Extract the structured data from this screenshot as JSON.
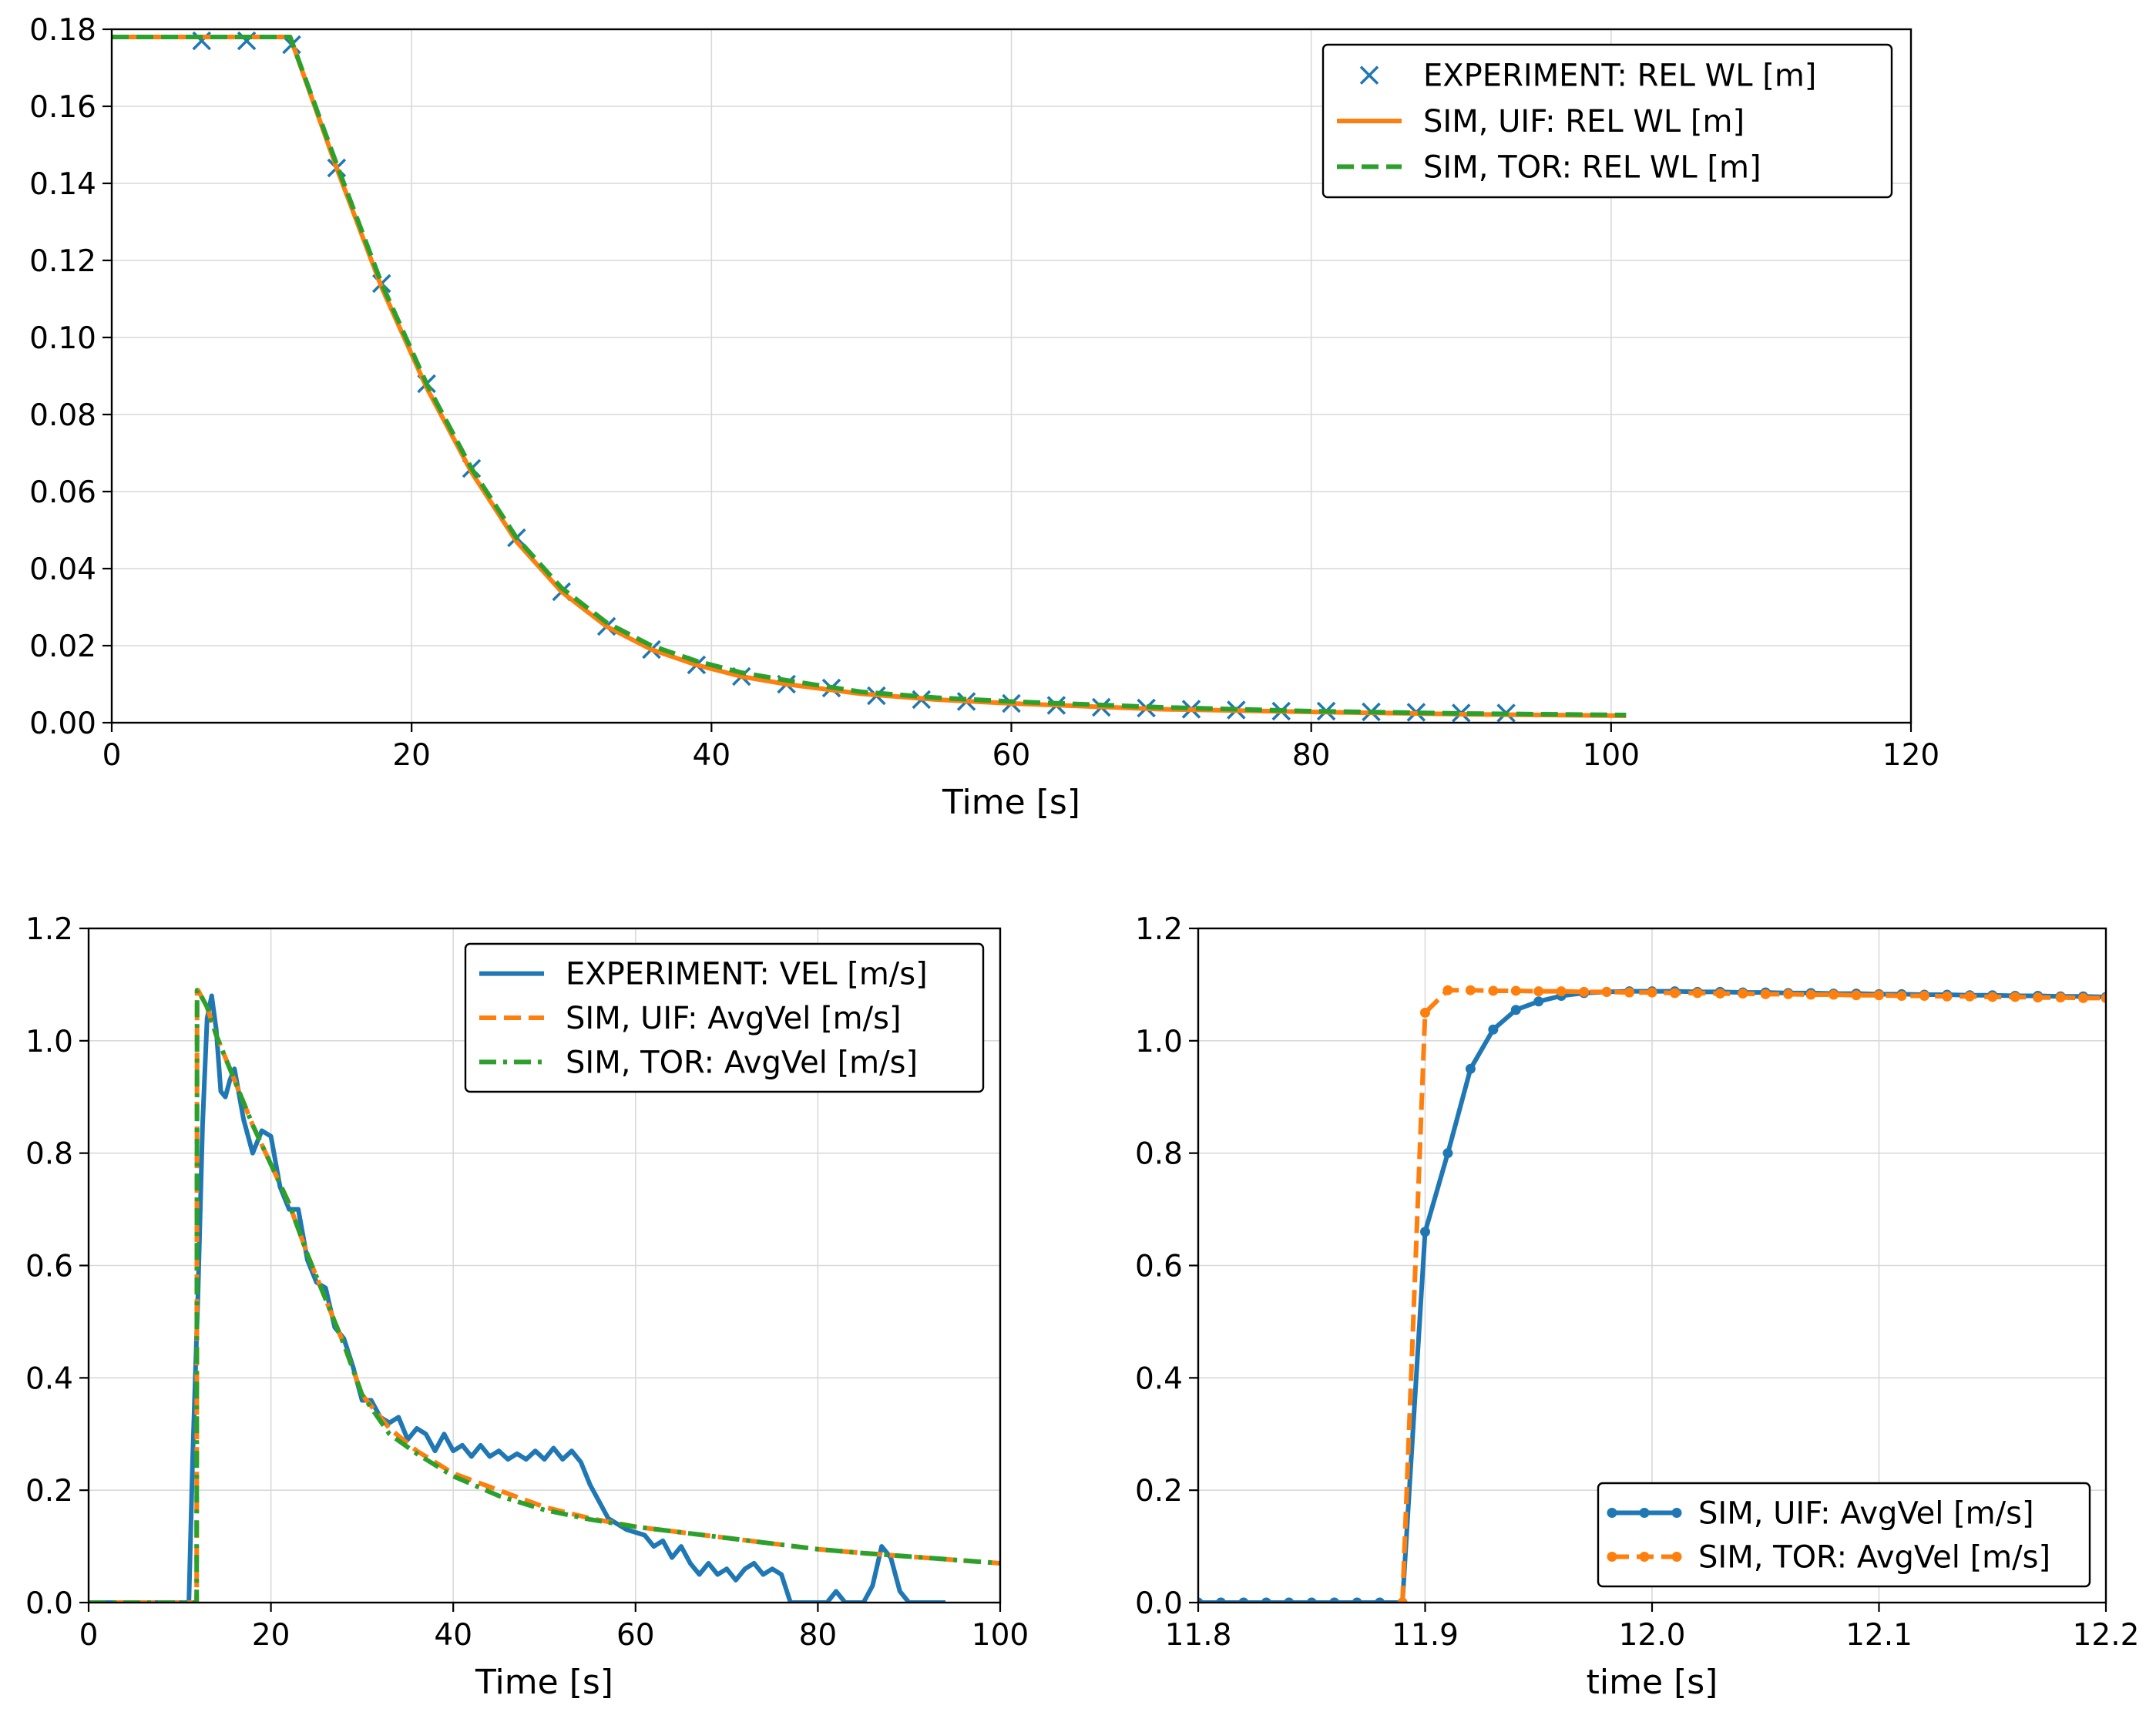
{
  "chart_data": [
    {
      "id": "top",
      "type": "line",
      "xlabel": "Time [s]",
      "ylabel": "",
      "xlim": [
        0,
        120
      ],
      "ylim": [
        0,
        0.18
      ],
      "xticks": [
        0,
        20,
        40,
        60,
        80,
        100,
        120
      ],
      "xtick_labels": [
        "0",
        "20",
        "40",
        "60",
        "80",
        "100",
        "120"
      ],
      "yticks": [
        0,
        0.02,
        0.04,
        0.06,
        0.08,
        0.1,
        0.12,
        0.14,
        0.16,
        0.18
      ],
      "ytick_labels": [
        "0.00",
        "0.02",
        "0.04",
        "0.06",
        "0.08",
        "0.10",
        "0.12",
        "0.14",
        "0.16",
        "0.18"
      ],
      "grid": true,
      "legend_position": "top-right",
      "series": [
        {
          "name": "EXPERIMENT: REL WL [m]",
          "style": "markers-x",
          "color": "#1f77b4",
          "x": [
            6,
            9,
            12,
            15,
            18,
            21,
            24,
            27,
            30,
            33,
            36,
            39,
            42,
            45,
            48,
            51,
            54,
            57,
            60,
            63,
            66,
            69,
            72,
            75,
            78,
            81,
            84,
            87,
            90,
            93
          ],
          "y": [
            0.177,
            0.177,
            0.176,
            0.144,
            0.114,
            0.088,
            0.066,
            0.048,
            0.034,
            0.025,
            0.019,
            0.015,
            0.012,
            0.01,
            0.009,
            0.007,
            0.006,
            0.0055,
            0.005,
            0.0045,
            0.004,
            0.0038,
            0.0035,
            0.0033,
            0.003,
            0.003,
            0.0028,
            0.0027,
            0.0025,
            0.0025
          ]
        },
        {
          "name": "SIM, UIF: REL WL [m]",
          "style": "solid",
          "color": "#ff7f0e",
          "x": [
            0,
            5,
            10,
            11.9,
            15,
            18,
            21,
            24,
            27,
            30,
            33,
            36,
            39,
            42,
            45,
            50,
            55,
            60,
            70,
            80,
            90,
            101
          ],
          "y": [
            0.178,
            0.178,
            0.178,
            0.178,
            0.144,
            0.113,
            0.087,
            0.065,
            0.047,
            0.034,
            0.025,
            0.019,
            0.015,
            0.012,
            0.01,
            0.0075,
            0.006,
            0.005,
            0.0035,
            0.0028,
            0.0022,
            0.0018
          ]
        },
        {
          "name": "SIM, TOR: REL WL [m]",
          "style": "dashed",
          "color": "#2ca02c",
          "x": [
            0,
            5,
            10,
            11.9,
            15,
            18,
            21,
            24,
            27,
            30,
            33,
            36,
            39,
            42,
            45,
            50,
            55,
            60,
            70,
            80,
            90,
            101
          ],
          "y": [
            0.178,
            0.178,
            0.178,
            0.178,
            0.145,
            0.114,
            0.088,
            0.066,
            0.048,
            0.035,
            0.026,
            0.02,
            0.016,
            0.013,
            0.011,
            0.008,
            0.0065,
            0.0055,
            0.004,
            0.003,
            0.0024,
            0.002
          ]
        }
      ]
    },
    {
      "id": "bottom-left",
      "type": "line",
      "xlabel": "Time [s]",
      "ylabel": "",
      "xlim": [
        0,
        100
      ],
      "ylim": [
        0,
        1.2
      ],
      "xticks": [
        0,
        20,
        40,
        60,
        80,
        100
      ],
      "xtick_labels": [
        "0",
        "20",
        "40",
        "60",
        "80",
        "100"
      ],
      "yticks": [
        0,
        0.2,
        0.4,
        0.6,
        0.8,
        1.0,
        1.2
      ],
      "ytick_labels": [
        "0.0",
        "0.2",
        "0.4",
        "0.6",
        "0.8",
        "1.0",
        "1.2"
      ],
      "grid": true,
      "legend_position": "top-right",
      "series": [
        {
          "name": "EXPERIMENT: VEL [m/s]",
          "style": "solid",
          "color": "#1f77b4",
          "x": [
            0,
            11,
            11.4,
            12,
            12.5,
            13,
            13.5,
            14,
            14.5,
            15,
            15.5,
            16,
            17,
            18,
            19,
            20,
            21,
            22,
            23,
            24,
            25,
            26,
            27,
            28,
            29,
            30,
            31,
            32,
            33,
            34,
            35,
            36,
            37,
            38,
            39,
            40,
            41,
            42,
            43,
            44,
            45,
            46,
            47,
            48,
            49,
            50,
            51,
            52,
            53,
            54,
            55,
            56,
            57,
            58,
            59,
            60,
            61,
            62,
            63,
            64,
            65,
            66,
            67,
            68,
            69,
            70,
            71,
            72,
            73,
            74,
            75,
            76,
            77,
            78,
            79,
            80,
            81,
            82,
            83,
            84,
            85,
            86,
            87,
            88,
            89,
            90,
            91,
            92,
            93,
            94
          ],
          "y": [
            0,
            0,
            0.25,
            0.55,
            0.85,
            1.04,
            1.08,
            1.02,
            0.91,
            0.9,
            0.93,
            0.95,
            0.86,
            0.8,
            0.84,
            0.83,
            0.74,
            0.7,
            0.7,
            0.61,
            0.57,
            0.56,
            0.49,
            0.47,
            0.42,
            0.36,
            0.36,
            0.33,
            0.32,
            0.33,
            0.29,
            0.31,
            0.3,
            0.27,
            0.3,
            0.27,
            0.28,
            0.26,
            0.28,
            0.26,
            0.27,
            0.255,
            0.265,
            0.255,
            0.27,
            0.255,
            0.275,
            0.255,
            0.27,
            0.25,
            0.21,
            0.18,
            0.15,
            0.14,
            0.13,
            0.125,
            0.12,
            0.1,
            0.11,
            0.08,
            0.1,
            0.07,
            0.05,
            0.07,
            0.05,
            0.06,
            0.04,
            0.06,
            0.07,
            0.05,
            0.06,
            0.05,
            0.0,
            0.0,
            0.0,
            0.0,
            0.0,
            0.02,
            0.0,
            0.0,
            0.0,
            0.03,
            0.1,
            0.08,
            0.02,
            0.0,
            0.0,
            0.0,
            0.0,
            0.0
          ]
        },
        {
          "name": "SIM, UIF: AvgVel [m/s]",
          "style": "dashed",
          "color": "#ff7f0e",
          "x": [
            0,
            11.85,
            11.9,
            12,
            13,
            14,
            16,
            18,
            20,
            22,
            24,
            26,
            28,
            30,
            33,
            36,
            40,
            45,
            50,
            55,
            60,
            65,
            70,
            75,
            80,
            85,
            90,
            95,
            100
          ],
          "y": [
            0,
            0,
            1.09,
            1.09,
            1.06,
            1.01,
            0.93,
            0.85,
            0.78,
            0.71,
            0.62,
            0.54,
            0.46,
            0.37,
            0.31,
            0.27,
            0.23,
            0.2,
            0.17,
            0.15,
            0.135,
            0.125,
            0.115,
            0.105,
            0.095,
            0.088,
            0.082,
            0.076,
            0.07
          ]
        },
        {
          "name": "SIM, TOR: AvgVel [m/s]",
          "style": "dashdot",
          "color": "#2ca02c",
          "x": [
            0,
            11.85,
            11.9,
            12,
            13,
            14,
            16,
            18,
            20,
            22,
            24,
            26,
            28,
            30,
            33,
            36,
            40,
            45,
            50,
            55,
            60,
            65,
            70,
            75,
            80,
            85,
            90,
            95,
            100
          ],
          "y": [
            0,
            0,
            1.09,
            1.09,
            1.06,
            1.01,
            0.93,
            0.85,
            0.78,
            0.71,
            0.62,
            0.54,
            0.46,
            0.37,
            0.3,
            0.265,
            0.225,
            0.19,
            0.165,
            0.148,
            0.135,
            0.125,
            0.115,
            0.105,
            0.095,
            0.088,
            0.082,
            0.076,
            0.07
          ]
        }
      ]
    },
    {
      "id": "bottom-right",
      "type": "line",
      "xlabel": "time [s]",
      "ylabel": "",
      "xlim": [
        11.8,
        12.2
      ],
      "ylim": [
        0,
        1.2
      ],
      "xticks": [
        11.8,
        11.9,
        12.0,
        12.1,
        12.2
      ],
      "xtick_labels": [
        "11.8",
        "11.9",
        "12.0",
        "12.1",
        "12.2"
      ],
      "yticks": [
        0,
        0.2,
        0.4,
        0.6,
        0.8,
        1.0,
        1.2
      ],
      "ytick_labels": [
        "0.0",
        "0.2",
        "0.4",
        "0.6",
        "0.8",
        "1.0",
        "1.2"
      ],
      "grid": true,
      "legend_position": "bottom-right",
      "series": [
        {
          "name": "SIM, UIF: AvgVel [m/s]",
          "style": "solid-dots",
          "color": "#1f77b4",
          "x": [
            11.89,
            11.9,
            11.91,
            11.92,
            11.93,
            11.94,
            11.95,
            11.96,
            11.97,
            11.98,
            11.99,
            12.0,
            12.01,
            12.02,
            12.03,
            12.04,
            12.05,
            12.06,
            12.07,
            12.08,
            12.09,
            12.1,
            12.11,
            12.12,
            12.13,
            12.14,
            12.15,
            12.16,
            12.17,
            12.18,
            12.19,
            12.2
          ],
          "y": [
            0,
            0.66,
            0.8,
            0.95,
            1.02,
            1.055,
            1.07,
            1.08,
            1.085,
            1.087,
            1.088,
            1.088,
            1.088,
            1.087,
            1.087,
            1.086,
            1.086,
            1.085,
            1.085,
            1.084,
            1.084,
            1.083,
            1.083,
            1.082,
            1.082,
            1.081,
            1.081,
            1.08,
            1.08,
            1.079,
            1.079,
            1.078
          ]
        },
        {
          "name": "SIM, TOR: AvgVel [m/s]",
          "style": "dashed-dots",
          "color": "#ff7f0e",
          "x": [
            11.89,
            11.9,
            11.91,
            11.92,
            11.93,
            11.94,
            11.95,
            11.96,
            11.97,
            11.98,
            11.99,
            12.0,
            12.01,
            12.02,
            12.03,
            12.04,
            12.05,
            12.06,
            12.07,
            12.08,
            12.09,
            12.1,
            12.11,
            12.12,
            12.13,
            12.14,
            12.15,
            12.16,
            12.17,
            12.18,
            12.19,
            12.2
          ],
          "y": [
            0,
            1.05,
            1.09,
            1.09,
            1.089,
            1.089,
            1.088,
            1.088,
            1.087,
            1.087,
            1.086,
            1.086,
            1.085,
            1.085,
            1.084,
            1.084,
            1.083,
            1.083,
            1.082,
            1.082,
            1.081,
            1.081,
            1.08,
            1.08,
            1.079,
            1.079,
            1.078,
            1.078,
            1.077,
            1.077,
            1.076,
            1.076
          ]
        }
      ],
      "pre_series_zero_x": [
        11.8,
        11.81,
        11.82,
        11.83,
        11.84,
        11.85,
        11.86,
        11.87,
        11.88
      ]
    }
  ]
}
